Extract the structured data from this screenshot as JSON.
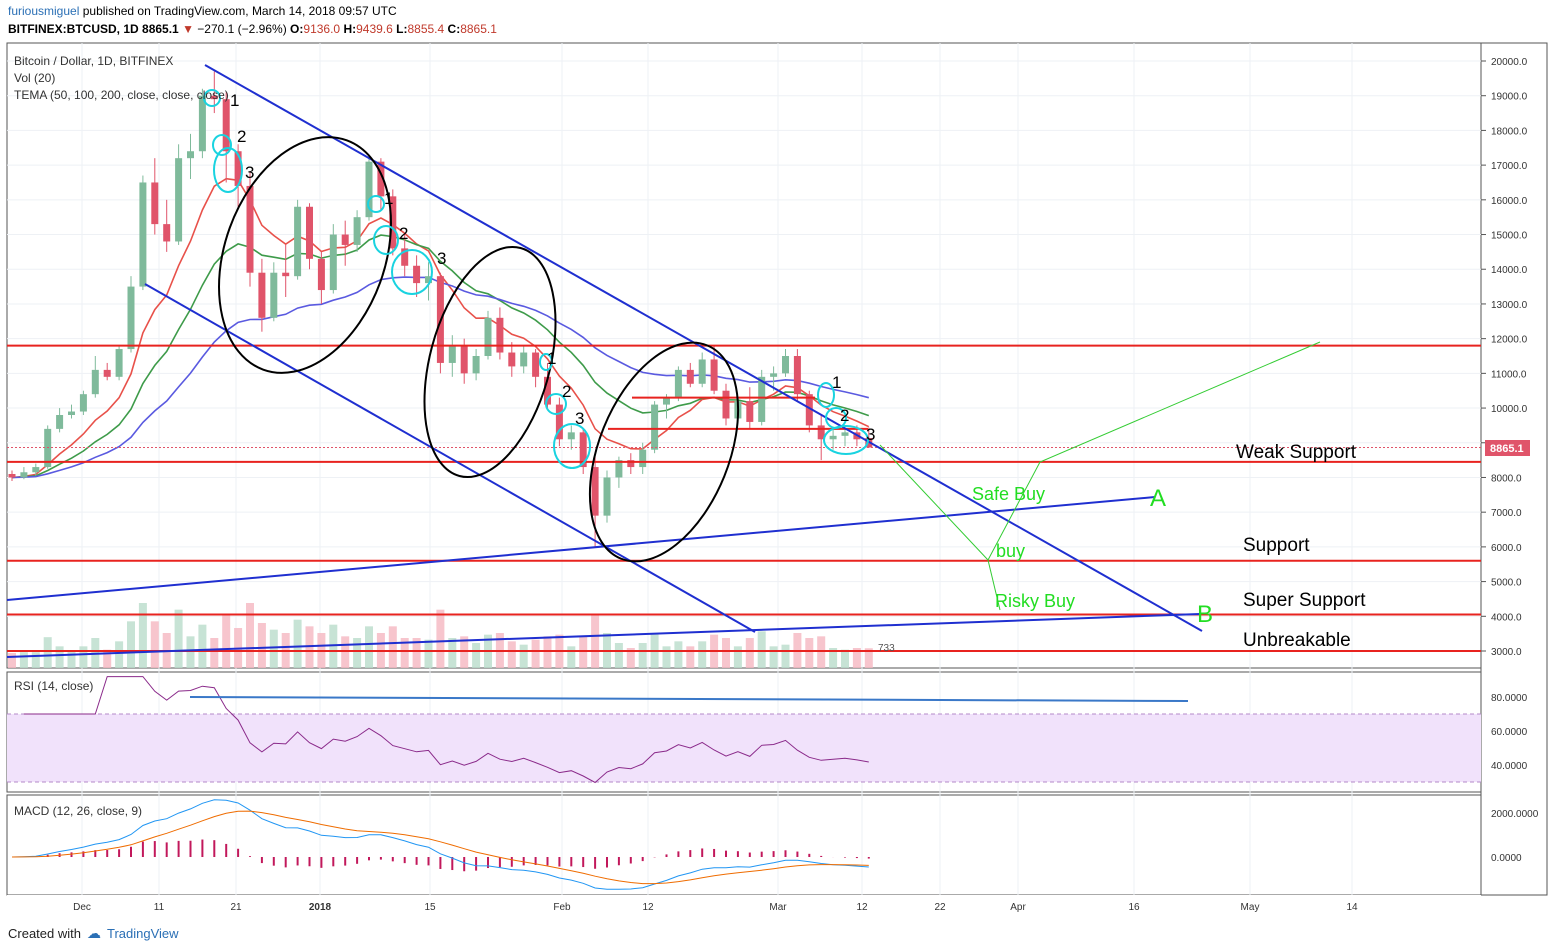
{
  "header": {
    "publisher": "furiousmiguel",
    "published_text": "published on TradingView.com, March 14, 2018 09:57 UTC",
    "symbol": "BITFINEX:BTCUSD, 1D",
    "last": "8865.1",
    "change": "−270.1 (−2.96%)",
    "o_label": "O:",
    "open": "9136.0",
    "h_label": "H:",
    "high": "9439.6",
    "l_label": "L:",
    "low": "8855.4",
    "c_label": "C:",
    "close": "8865.1"
  },
  "pane_titles": {
    "main": "Bitcoin / Dollar, 1D, BITFINEX",
    "vol": "Vol (20)",
    "tema": "TEMA (50, 100, 200, close, close, close)",
    "rsi": "RSI (14, close)",
    "macd": "MACD (12, 26, close, 9)"
  },
  "price_tag": "8865.1",
  "footer": {
    "created_with": "Created with",
    "brand": "TradingView"
  },
  "colors": {
    "up": "#7fba9b",
    "down": "#e0546a",
    "blue_line": "#1f2fd0",
    "red_line": "#e8231f",
    "green_text": "#22dd22",
    "cyan": "#19d3e0"
  },
  "chart_data": {
    "type": "candlestick",
    "price_axis": {
      "ticks": [
        "20000.0",
        "19000.0",
        "18000.0",
        "17000.0",
        "16000.0",
        "15000.0",
        "14000.0",
        "13000.0",
        "12000.0",
        "11000.0",
        "10000.0",
        "9000.0",
        "8000.0",
        "7000.0",
        "6000.0",
        "5000.0",
        "4000.0",
        "3000.0"
      ]
    },
    "rsi_axis": {
      "ticks": [
        "80.0000",
        "60.0000",
        "40.0000"
      ]
    },
    "macd_axis": {
      "ticks": [
        "2000.0000",
        "0.0000"
      ]
    },
    "x_ticks": [
      "Dec",
      "11",
      "21",
      "2018",
      "15",
      "Feb",
      "12",
      "Mar",
      "12",
      "22",
      "Apr",
      "16",
      "May",
      "14"
    ],
    "candles": [
      [
        8100,
        8200,
        7900,
        8000
      ],
      [
        8000,
        8300,
        7950,
        8150
      ],
      [
        8150,
        8400,
        8050,
        8300
      ],
      [
        8300,
        9500,
        8250,
        9400
      ],
      [
        9400,
        10000,
        9300,
        9800
      ],
      [
        9800,
        10100,
        9700,
        9900
      ],
      [
        9900,
        10500,
        9800,
        10400
      ],
      [
        10400,
        11500,
        10300,
        11100
      ],
      [
        11100,
        11300,
        10800,
        10900
      ],
      [
        10900,
        11800,
        10800,
        11700
      ],
      [
        11700,
        13800,
        11600,
        13500
      ],
      [
        13500,
        16700,
        13400,
        16500
      ],
      [
        16500,
        17200,
        15000,
        15300
      ],
      [
        15300,
        16000,
        14500,
        14800
      ],
      [
        14800,
        17600,
        14700,
        17200
      ],
      [
        17200,
        17900,
        16600,
        17400
      ],
      [
        17400,
        19200,
        17200,
        19000
      ],
      [
        19000,
        19700,
        18500,
        18900
      ],
      [
        18900,
        19100,
        16500,
        17400
      ],
      [
        17400,
        17600,
        15800,
        16400
      ],
      [
        16400,
        16800,
        13500,
        13900
      ],
      [
        13900,
        14300,
        12200,
        12600
      ],
      [
        12600,
        14200,
        12500,
        13900
      ],
      [
        13900,
        14700,
        13200,
        13800
      ],
      [
        13800,
        16000,
        13700,
        15800
      ],
      [
        15800,
        15900,
        14000,
        14300
      ],
      [
        14300,
        14500,
        13000,
        13400
      ],
      [
        13400,
        15300,
        13300,
        15000
      ],
      [
        15000,
        15400,
        14100,
        14700
      ],
      [
        14700,
        15700,
        14500,
        15500
      ],
      [
        15500,
        17300,
        15400,
        17100
      ],
      [
        17100,
        17200,
        15700,
        16100
      ],
      [
        16100,
        16300,
        14400,
        14600
      ],
      [
        14600,
        15000,
        13800,
        14100
      ],
      [
        14100,
        14400,
        13200,
        13600
      ],
      [
        13600,
        14200,
        13100,
        13800
      ],
      [
        13800,
        13900,
        11000,
        11300
      ],
      [
        11300,
        12100,
        10900,
        11800
      ],
      [
        11800,
        12000,
        10700,
        11000
      ],
      [
        11000,
        11700,
        10800,
        11500
      ],
      [
        11500,
        12800,
        11400,
        12600
      ],
      [
        12600,
        12900,
        11400,
        11600
      ],
      [
        11600,
        11900,
        10900,
        11200
      ],
      [
        11200,
        11800,
        11000,
        11600
      ],
      [
        11600,
        11700,
        10600,
        10900
      ],
      [
        10900,
        11300,
        10000,
        10100
      ],
      [
        10100,
        10300,
        8900,
        9100
      ],
      [
        9100,
        9500,
        8800,
        9300
      ],
      [
        9300,
        9400,
        8100,
        8300
      ],
      [
        8300,
        8600,
        6000,
        6900
      ],
      [
        6900,
        8200,
        6700,
        8000
      ],
      [
        8000,
        8600,
        7700,
        8500
      ],
      [
        8500,
        8700,
        8100,
        8300
      ],
      [
        8300,
        9000,
        8100,
        8800
      ],
      [
        8800,
        10200,
        8700,
        10100
      ],
      [
        10100,
        10400,
        9700,
        10300
      ],
      [
        10300,
        11200,
        10200,
        11100
      ],
      [
        11100,
        11300,
        10600,
        10700
      ],
      [
        10700,
        11600,
        10600,
        11400
      ],
      [
        11400,
        11800,
        10400,
        10500
      ],
      [
        10500,
        10700,
        9500,
        9700
      ],
      [
        9700,
        10300,
        9600,
        10200
      ],
      [
        10200,
        10600,
        9400,
        9600
      ],
      [
        9600,
        11100,
        9500,
        10900
      ],
      [
        10900,
        11200,
        10500,
        11000
      ],
      [
        11000,
        11700,
        10900,
        11500
      ],
      [
        11500,
        11700,
        10200,
        10400
      ],
      [
        10400,
        10500,
        9300,
        9500
      ],
      [
        9500,
        9800,
        8500,
        9100
      ],
      [
        9100,
        9400,
        8800,
        9200
      ],
      [
        9200,
        9400,
        8900,
        9300
      ],
      [
        9300,
        9500,
        8900,
        9100
      ],
      [
        9136,
        9440,
        8855,
        8865
      ]
    ],
    "volume_scale": "relative",
    "annotations": {
      "labels": [
        "Weak Support",
        "Support",
        "Super Support",
        "Unbreakable",
        "Safe Buy",
        "buy",
        "Risky Buy",
        "A",
        "B"
      ],
      "wave_numbers": [
        "1",
        "2",
        "3"
      ],
      "icon_counter": "733"
    },
    "horizontal_levels": [
      11800,
      8450,
      5600,
      4050,
      3000
    ],
    "tema": {
      "periods": [
        50,
        100,
        200
      ],
      "colors": [
        "#e8514a",
        "#3e9b4a",
        "#5a5ae0"
      ]
    }
  }
}
